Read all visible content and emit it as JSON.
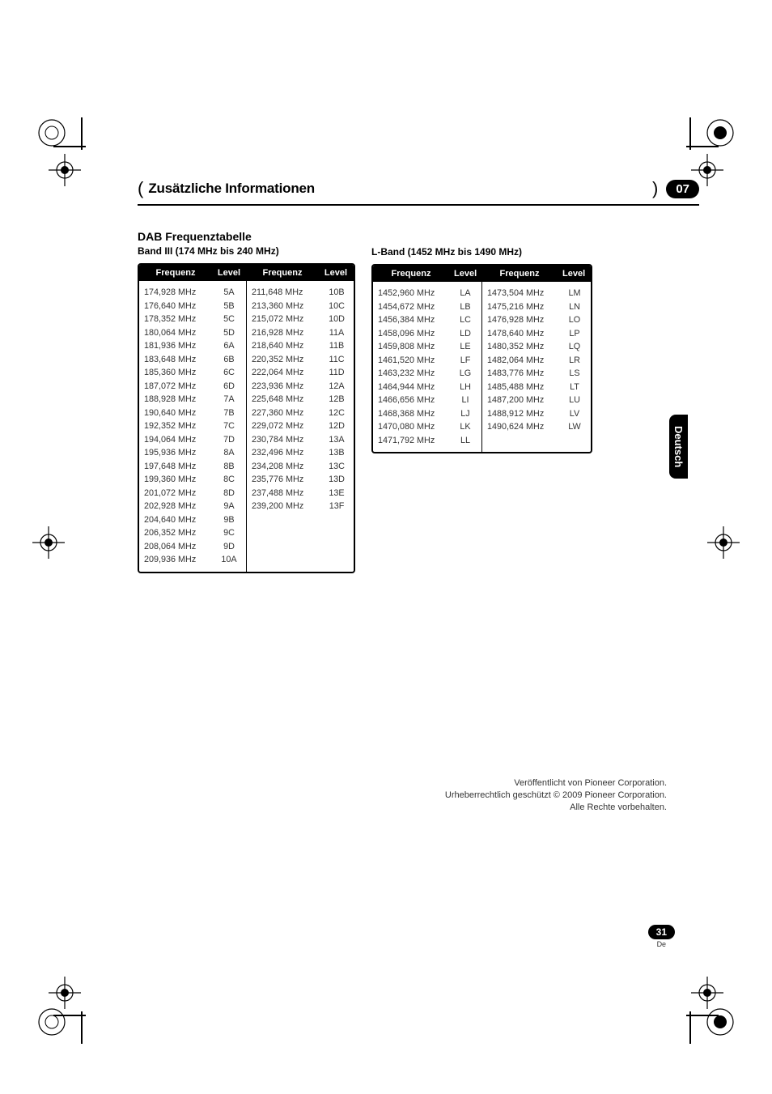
{
  "chapter": {
    "title": "Zusätzliche Informationen",
    "number": "07"
  },
  "side_tab": "Deutsch",
  "footer": {
    "line1": "Veröffentlicht von Pioneer Corporation.",
    "line2": "Urheberrechtlich geschützt © 2009 Pioneer Corporation.",
    "line3": "Alle Rechte vorbehalten."
  },
  "page_number": {
    "num": "31",
    "lang": "De"
  },
  "left_section": {
    "heading": "DAB Frequenztabelle",
    "subheading": "Band III (174 MHz bis 240 MHz)",
    "columns": {
      "freq": "Frequenz",
      "level": "Level"
    },
    "block1": [
      [
        "174,928 MHz",
        "5A"
      ],
      [
        "176,640 MHz",
        "5B"
      ],
      [
        "178,352 MHz",
        "5C"
      ],
      [
        "180,064 MHz",
        "5D"
      ],
      [
        "181,936 MHz",
        "6A"
      ],
      [
        "183,648 MHz",
        "6B"
      ],
      [
        "185,360 MHz",
        "6C"
      ],
      [
        "187,072 MHz",
        "6D"
      ],
      [
        "188,928 MHz",
        "7A"
      ],
      [
        "190,640 MHz",
        "7B"
      ],
      [
        "192,352 MHz",
        "7C"
      ],
      [
        "194,064 MHz",
        "7D"
      ],
      [
        "195,936 MHz",
        "8A"
      ],
      [
        "197,648 MHz",
        "8B"
      ],
      [
        "199,360 MHz",
        "8C"
      ],
      [
        "201,072 MHz",
        "8D"
      ],
      [
        "202,928 MHz",
        "9A"
      ],
      [
        "204,640 MHz",
        "9B"
      ],
      [
        "206,352 MHz",
        "9C"
      ],
      [
        "208,064 MHz",
        "9D"
      ],
      [
        "209,936 MHz",
        "10A"
      ]
    ],
    "block2": [
      [
        "211,648 MHz",
        "10B"
      ],
      [
        "213,360 MHz",
        "10C"
      ],
      [
        "215,072 MHz",
        "10D"
      ],
      [
        "216,928 MHz",
        "11A"
      ],
      [
        "218,640 MHz",
        "11B"
      ],
      [
        "220,352 MHz",
        "11C"
      ],
      [
        "222,064 MHz",
        "11D"
      ],
      [
        "223,936 MHz",
        "12A"
      ],
      [
        "225,648 MHz",
        "12B"
      ],
      [
        "227,360 MHz",
        "12C"
      ],
      [
        "229,072 MHz",
        "12D"
      ],
      [
        "230,784 MHz",
        "13A"
      ],
      [
        "232,496 MHz",
        "13B"
      ],
      [
        "234,208 MHz",
        "13C"
      ],
      [
        "235,776 MHz",
        "13D"
      ],
      [
        "237,488 MHz",
        "13E"
      ],
      [
        "239,200 MHz",
        "13F"
      ]
    ]
  },
  "right_section": {
    "subheading": "L-Band (1452 MHz bis 1490 MHz)",
    "columns": {
      "freq": "Frequenz",
      "level": "Level"
    },
    "block1": [
      [
        "1452,960 MHz",
        "LA"
      ],
      [
        "1454,672 MHz",
        "LB"
      ],
      [
        "1456,384 MHz",
        "LC"
      ],
      [
        "1458,096 MHz",
        "LD"
      ],
      [
        "1459,808 MHz",
        "LE"
      ],
      [
        "1461,520 MHz",
        "LF"
      ],
      [
        "1463,232 MHz",
        "LG"
      ],
      [
        "1464,944 MHz",
        "LH"
      ],
      [
        "1466,656 MHz",
        "LI"
      ],
      [
        "1468,368 MHz",
        "LJ"
      ],
      [
        "1470,080 MHz",
        "LK"
      ],
      [
        "1471,792 MHz",
        "LL"
      ]
    ],
    "block2": [
      [
        "1473,504 MHz",
        "LM"
      ],
      [
        "1475,216 MHz",
        "LN"
      ],
      [
        "1476,928 MHz",
        "LO"
      ],
      [
        "1478,640 MHz",
        "LP"
      ],
      [
        "1480,352 MHz",
        "LQ"
      ],
      [
        "1482,064 MHz",
        "LR"
      ],
      [
        "1483,776 MHz",
        "LS"
      ],
      [
        "1485,488 MHz",
        "LT"
      ],
      [
        "1487,200 MHz",
        "LU"
      ],
      [
        "1488,912 MHz",
        "LV"
      ],
      [
        "1490,624 MHz",
        "LW"
      ]
    ]
  },
  "colors": {
    "text": "#333333",
    "ink": "#000000",
    "bg": "#ffffff"
  }
}
